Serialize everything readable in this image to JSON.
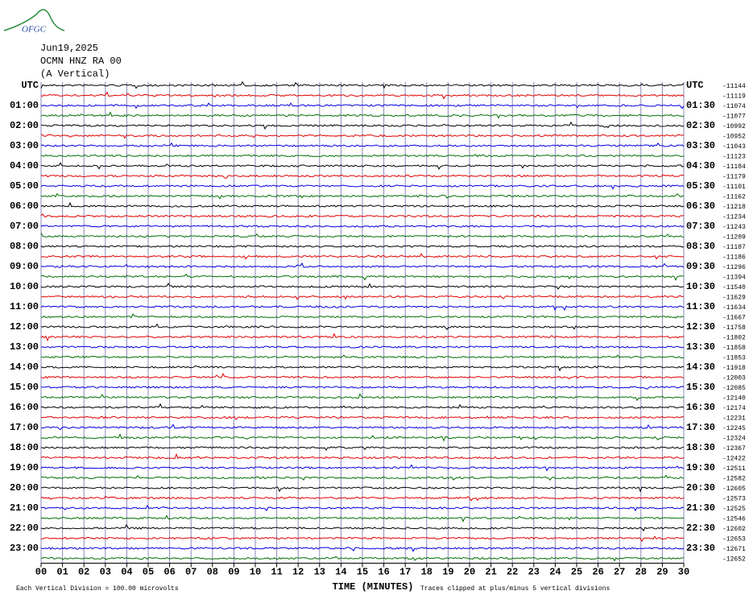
{
  "chart_data": {
    "type": "helicorder",
    "logo": "OFGC",
    "header": [
      "Jun19,2025",
      "OCMN HNZ RA 00",
      "(A Vertical)"
    ],
    "left_labels": [
      "UTC",
      "01:00",
      "02:00",
      "03:00",
      "04:00",
      "05:00",
      "06:00",
      "07:00",
      "08:00",
      "09:00",
      "10:00",
      "11:00",
      "12:00",
      "13:00",
      "14:00",
      "15:00",
      "16:00",
      "17:00",
      "18:00",
      "19:00",
      "20:00",
      "21:00",
      "22:00",
      "23:00"
    ],
    "right_labels": [
      "UTC",
      "01:30",
      "02:30",
      "03:30",
      "04:30",
      "05:30",
      "06:30",
      "07:30",
      "08:30",
      "09:30",
      "10:30",
      "11:30",
      "12:30",
      "13:30",
      "14:30",
      "15:30",
      "16:30",
      "17:30",
      "18:30",
      "19:30",
      "20:30",
      "21:30",
      "22:30",
      "23:30"
    ],
    "offsets": [
      -11144,
      -11119,
      -11074,
      -11077,
      -10992,
      -10952,
      -11043,
      -11123,
      -11184,
      -11179,
      -11101,
      -11162,
      -11218,
      -11234,
      -11243,
      -11209,
      -11187,
      -11186,
      -11296,
      -11394,
      -11540,
      -11629,
      -11634,
      -11667,
      -11758,
      -11802,
      -11858,
      -11853,
      -11918,
      -12003,
      -12085,
      -12140,
      -12174,
      -12231,
      -12245,
      -12324,
      -12367,
      -12422,
      -12511,
      -12582,
      -12605,
      -12573,
      -12525,
      -12546,
      -12602,
      -12653,
      -12671,
      -12652
    ],
    "colors": [
      "#000000",
      "#e00000",
      "#0000e0",
      "#007000"
    ],
    "xlabel": "TIME (MINUTES)",
    "xlim": [
      0,
      30
    ],
    "xticks": [
      {
        "value": 0,
        "label": "00"
      },
      {
        "value": 1,
        "label": "01"
      },
      {
        "value": 2,
        "label": "02"
      },
      {
        "value": 3,
        "label": "03"
      },
      {
        "value": 4,
        "label": "04"
      },
      {
        "value": 5,
        "label": "05"
      },
      {
        "value": 6,
        "label": "06"
      },
      {
        "value": 7,
        "label": "07"
      },
      {
        "value": 8,
        "label": "08"
      },
      {
        "value": 9,
        "label": "09"
      },
      10,
      11,
      12,
      13,
      14,
      15,
      16,
      17,
      18,
      19,
      20,
      21,
      22,
      23,
      24,
      25,
      26,
      27,
      28,
      29,
      30
    ],
    "notes": [
      "Each Vertical Division =  100.00 microvolts",
      "Traces clipped at plus/minus 5 vertical divisions"
    ],
    "grid": true
  }
}
